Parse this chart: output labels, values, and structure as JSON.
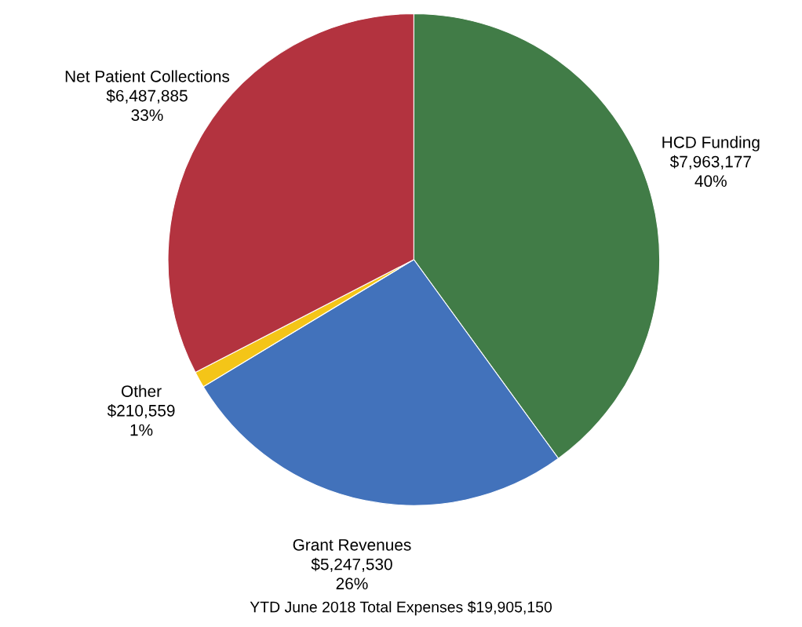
{
  "chart_data": {
    "type": "pie",
    "categories": [
      "HCD Funding",
      "Grant Revenues",
      "Other",
      "Net Patient Collections"
    ],
    "values": [
      7963177,
      5247530,
      210559,
      6487885
    ],
    "colors": [
      "#417c47",
      "#4272bb",
      "#f4c518",
      "#b3333f"
    ],
    "value_labels": [
      "$7,963,177\n40%",
      "$5,247,530\n26%",
      "$210,559\n1%",
      "$6,487,885\n33%"
    ],
    "annotations": [
      "YTD June 2018 Total Expenses $19,905,150"
    ],
    "legend": false
  }
}
